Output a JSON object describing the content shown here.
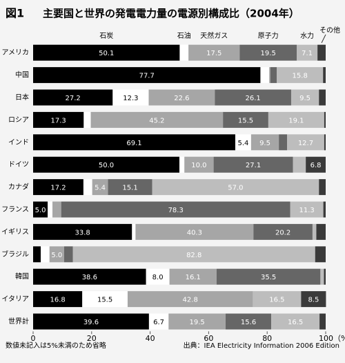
{
  "chart_data": {
    "type": "stacked_bar_horizontal",
    "figure_label": "図1",
    "title": "主要国と世界の発電電力量の電源別構成比（2004年）",
    "categories": [
      "アメリカ",
      "中国",
      "日本",
      "ロシア",
      "インド",
      "ドイツ",
      "カナダ",
      "フランス",
      "イギリス",
      "ブラジル",
      "韓国",
      "イタリア",
      "世界計"
    ],
    "series": [
      {
        "name": "石炭",
        "color": "#000000",
        "values": [
          50.1,
          77.7,
          27.2,
          17.3,
          69.1,
          50.0,
          17.2,
          5.0,
          33.8,
          2.6,
          38.6,
          16.8,
          39.6
        ],
        "value_labels": [
          "50.1",
          "77.7",
          "27.2",
          "17.3",
          "69.1",
          "50.0",
          "17.2",
          "5.0",
          "33.8",
          null,
          "38.6",
          "16.8",
          "39.6"
        ]
      },
      {
        "name": "石油",
        "color": "#ffffff",
        "values": [
          3.0,
          3.0,
          12.3,
          2.4,
          5.4,
          1.7,
          3.0,
          1.6,
          1.2,
          3.0,
          8.0,
          15.5,
          6.7
        ],
        "value_labels": [
          null,
          null,
          "12.3",
          null,
          "5.4",
          null,
          null,
          null,
          null,
          null,
          "8.0",
          "15.5",
          "6.7"
        ]
      },
      {
        "name": "天然ガス",
        "color": "#a6a6a6",
        "values": [
          17.5,
          0.4,
          22.6,
          45.2,
          9.5,
          10.0,
          5.4,
          3.0,
          40.3,
          5.0,
          16.1,
          42.8,
          19.5
        ],
        "value_labels": [
          "17.5",
          null,
          "22.6",
          "45.2",
          "9.5",
          "10.0",
          "5.4",
          null,
          "40.3",
          "5.0",
          "16.1",
          "42.8",
          "19.5"
        ]
      },
      {
        "name": "原子力",
        "color": "#666666",
        "values": [
          19.5,
          2.2,
          26.1,
          15.5,
          2.8,
          27.1,
          15.1,
          78.3,
          20.2,
          3.0,
          35.5,
          0,
          15.6
        ],
        "value_labels": [
          "19.5",
          null,
          "26.1",
          "15.5",
          null,
          "27.1",
          "15.1",
          "78.3",
          "20.2",
          null,
          "35.5",
          null,
          "15.6"
        ]
      },
      {
        "name": "水力",
        "color": "#bdbdbd",
        "values": [
          7.1,
          15.8,
          9.5,
          19.1,
          12.7,
          4.4,
          57.0,
          11.3,
          1.3,
          82.8,
          1.2,
          16.5,
          16.5
        ],
        "value_labels": [
          "7.1",
          "15.8",
          "9.5",
          "19.1",
          "12.7",
          null,
          "57.0",
          "11.3",
          null,
          "82.8",
          null,
          "16.5",
          "16.5"
        ]
      },
      {
        "name": "その他",
        "color": "#3a3a3a",
        "values": [
          2.8,
          0.9,
          2.3,
          0.5,
          0.5,
          6.8,
          2.3,
          0.8,
          3.2,
          3.6,
          0.6,
          8.5,
          2.1
        ],
        "value_labels": [
          null,
          null,
          null,
          null,
          null,
          "6.8",
          null,
          null,
          null,
          null,
          null,
          "8.5",
          null
        ]
      }
    ],
    "xlim": [
      0,
      100
    ],
    "xticks": [
      0,
      20,
      40,
      60,
      80,
      {
        "value": 100,
        "label": "100（%）"
      }
    ],
    "note": "数値未記入は5%未満のため省略",
    "source": "出典：IEA Electricity Information 2006 Edition"
  }
}
